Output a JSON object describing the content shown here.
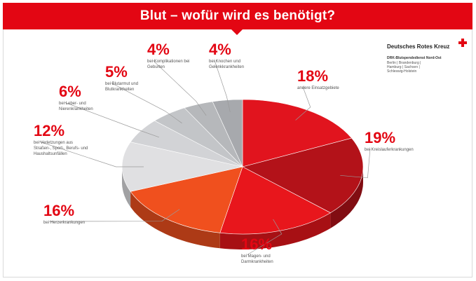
{
  "header": {
    "title": "Blut – wofür wird es benötigt?"
  },
  "brand": {
    "name": "Deutsches Rotes Kreuz",
    "sub1": "DRK-Blutspendedienst Nord-Ost",
    "sub2": "Berlin | Brandenburg | Hamburg | Sachsen | Schleswig-Holstein"
  },
  "colors": {
    "accent": "#e30613"
  },
  "chart_data": {
    "type": "pie",
    "title": "Blut – wofür wird es benötigt?",
    "slices": [
      {
        "label": "andere Einsatzgebiete",
        "value": 18,
        "value_label": "18%",
        "color": "#e1141e"
      },
      {
        "label": "bei Kreislauferkrankungen",
        "value": 19,
        "value_label": "19%",
        "color": "#b31219"
      },
      {
        "label": "bei Magen- und Darmkrankheiten",
        "value": 16,
        "value_label": "16%",
        "color": "#e8161c"
      },
      {
        "label": "bei Herzerkrankungen",
        "value": 16,
        "value_label": "16%",
        "color": "#f0501e"
      },
      {
        "label": "bei Verletzungen aus Straßen-, Sport-, Berufs- und Haushaltsunfällen",
        "value": 12,
        "value_label": "12%",
        "color": "#e0e0e2"
      },
      {
        "label": "bei Leber- und Nierenkrankheiten",
        "value": 6,
        "value_label": "6%",
        "color": "#d2d3d6"
      },
      {
        "label": "bei Blutarmut und Blutkrankheiten",
        "value": 5,
        "value_label": "5%",
        "color": "#c3c5c8"
      },
      {
        "label": "bei Komplikationen bei Geburten",
        "value": 4,
        "value_label": "4%",
        "color": "#b6b8bb"
      },
      {
        "label": "bei Knochen und Gelenkkrankheiten",
        "value": 4,
        "value_label": "4%",
        "color": "#a7a9ad"
      }
    ]
  }
}
